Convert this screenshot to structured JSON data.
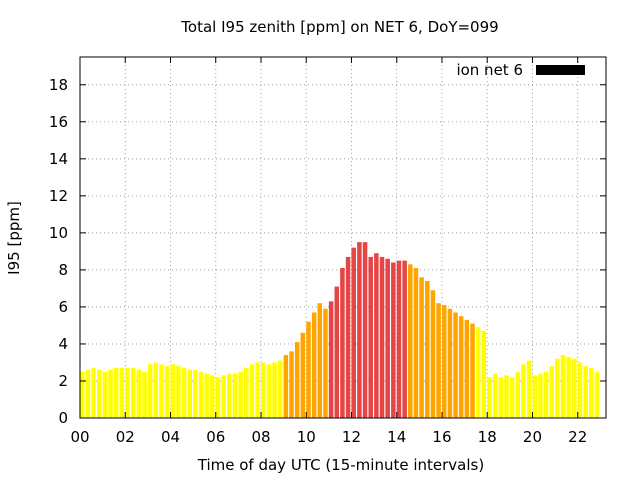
{
  "chart_data": {
    "type": "bar",
    "title": "Total I95 zenith [ppm] on NET 6, DoY=099",
    "xlabel": "Time of day UTC (15-minute intervals)",
    "ylabel": "I95 [ppm]",
    "xlim": [
      0,
      23.25
    ],
    "ylim": [
      0,
      19.5
    ],
    "x_ticks": [
      "00",
      "02",
      "04",
      "06",
      "08",
      "10",
      "12",
      "14",
      "16",
      "18",
      "20",
      "22"
    ],
    "y_ticks": [
      "0",
      "2",
      "4",
      "6",
      "8",
      "10",
      "12",
      "14",
      "16",
      "18"
    ],
    "grid": true,
    "legend": {
      "label": "ion net 6",
      "position": "top-right",
      "color": "#000000"
    },
    "bar_width_hours": 0.2,
    "x_start_hour": 0,
    "x_step_hours": 0.25,
    "values": [
      2.5,
      2.6,
      2.7,
      2.6,
      2.5,
      2.6,
      2.7,
      2.7,
      2.7,
      2.7,
      2.6,
      2.5,
      2.9,
      3.0,
      2.9,
      2.8,
      2.9,
      2.8,
      2.7,
      2.6,
      2.6,
      2.5,
      2.4,
      2.3,
      2.2,
      2.3,
      2.4,
      2.4,
      2.5,
      2.7,
      2.9,
      3.0,
      3.0,
      2.9,
      3.0,
      3.1,
      3.4,
      3.6,
      4.1,
      4.6,
      5.2,
      5.7,
      6.2,
      5.9,
      6.3,
      7.1,
      8.1,
      8.7,
      9.2,
      9.5,
      9.5,
      8.7,
      8.9,
      8.7,
      8.6,
      8.4,
      8.5,
      8.5,
      8.3,
      8.1,
      7.6,
      7.4,
      6.9,
      6.2,
      6.1,
      5.9,
      5.7,
      5.5,
      5.3,
      5.1,
      4.9,
      4.7,
      2.2,
      2.4,
      2.2,
      2.3,
      2.2,
      2.5,
      2.9,
      3.1,
      2.3,
      2.4,
      2.5,
      2.8,
      3.2,
      3.4,
      3.3,
      3.2,
      3.0,
      2.8,
      2.7,
      2.5
    ],
    "color_thresholds": [
      {
        "max": 4,
        "color": "#ffff00"
      },
      {
        "max": 8,
        "color": "#ffa500"
      },
      {
        "max": 100,
        "color": "#e54545"
      }
    ],
    "segment_colors": [
      {
        "from_hour": 0,
        "to_hour": 9.0,
        "color": "#ffff00"
      },
      {
        "from_hour": 9.0,
        "to_hour": 11.0,
        "color": "#ffa500"
      },
      {
        "from_hour": 11.0,
        "to_hour": 14.5,
        "color": "#e54545"
      },
      {
        "from_hour": 14.5,
        "to_hour": 17.5,
        "color": "#ffa500"
      },
      {
        "from_hour": 17.5,
        "to_hour": 24,
        "color": "#ffff00"
      }
    ]
  }
}
